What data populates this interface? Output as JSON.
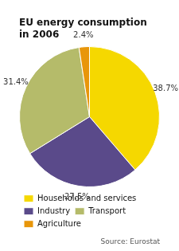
{
  "chart_data": {
    "type": "pie",
    "title": "EU energy consumption\nin 2006",
    "categories": [
      "Households and services",
      "Industry",
      "Transport",
      "Agriculture"
    ],
    "values": [
      38.7,
      27.5,
      31.4,
      2.4
    ],
    "colors": [
      "#f5d800",
      "#5a4a8a",
      "#b5bb6a",
      "#e8960a"
    ],
    "data_labels": true,
    "value_labels": [
      "38.7%",
      "27.5%",
      "31.4%",
      "2.4%"
    ],
    "legend": "bottom",
    "annotation": "Source: Eurostat"
  }
}
